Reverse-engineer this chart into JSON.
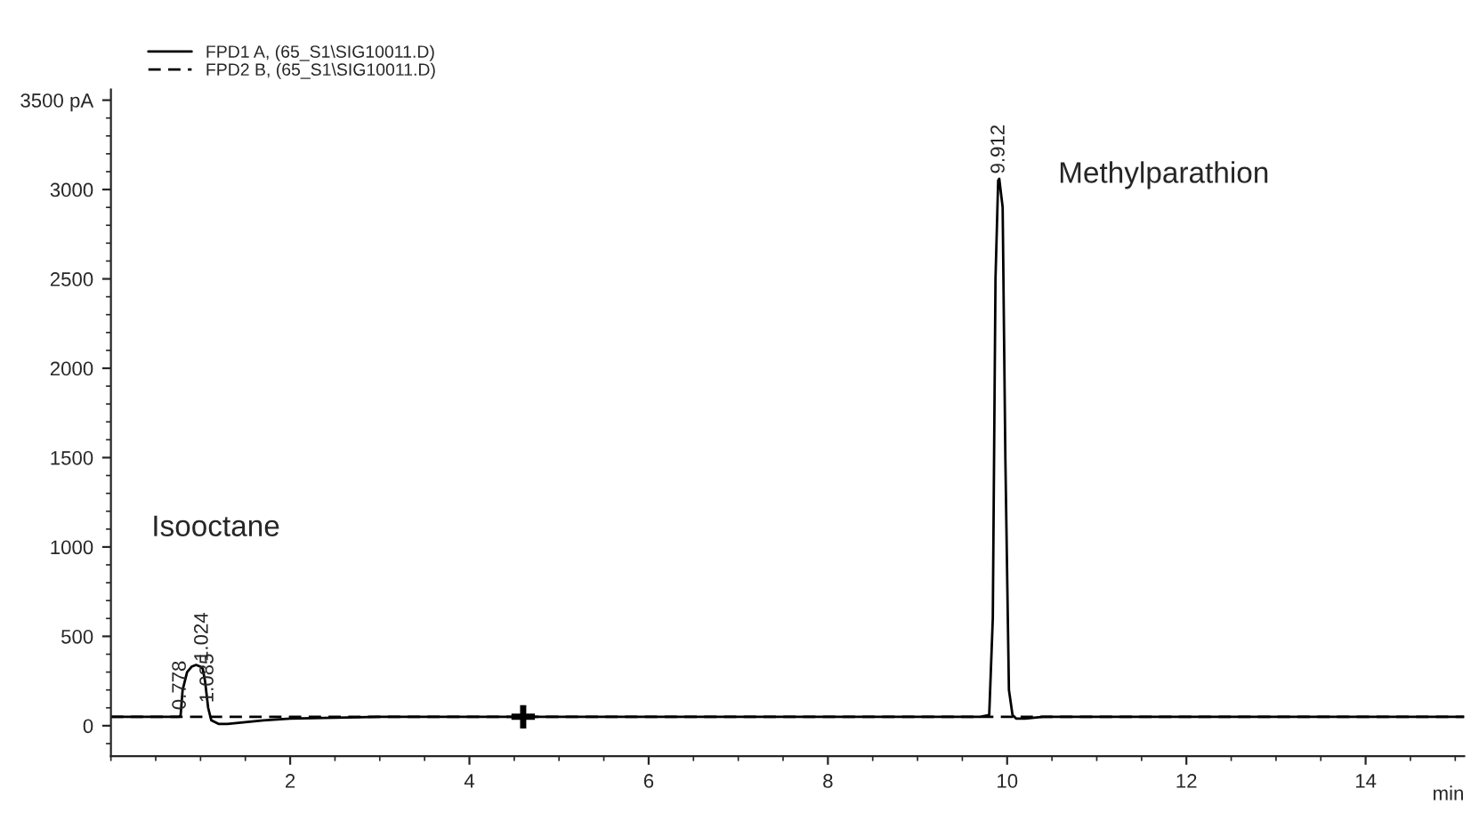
{
  "chart_data": {
    "type": "line",
    "xlabel": "min",
    "legend": "top left",
    "grid": false,
    "xlim": [
      0,
      15.1
    ],
    "ylim": [
      -170,
      3560
    ],
    "xticks": [
      2,
      4,
      6,
      8,
      10,
      12,
      14
    ],
    "yticks": [
      0,
      500,
      1000,
      1500,
      2000,
      2500,
      3000,
      {
        "value": 3500,
        "label": "3500 pA"
      }
    ],
    "series": [
      {
        "name": "FPD1 A, (65_S1\\SIG10011.D)",
        "color": "#000000",
        "line_style": "solid",
        "x": [
          0,
          0.7,
          0.76,
          0.778,
          0.8,
          0.85,
          0.9,
          0.95,
          1.0,
          1.024,
          1.05,
          1.085,
          1.12,
          1.2,
          1.3,
          1.5,
          1.7,
          2.0,
          3,
          4.6,
          6,
          8,
          9.7,
          9.8,
          9.84,
          9.87,
          9.9,
          9.912,
          9.95,
          9.98,
          10.02,
          10.06,
          10.1,
          10.2,
          10.4,
          12,
          15.1
        ],
        "values": [
          50,
          50,
          50,
          60,
          200,
          300,
          330,
          340,
          330,
          320,
          250,
          100,
          30,
          10,
          10,
          20,
          30,
          40,
          50,
          50,
          50,
          50,
          50,
          60,
          600,
          2500,
          3050,
          3060,
          2900,
          1500,
          200,
          60,
          40,
          40,
          50,
          50,
          50
        ]
      },
      {
        "name": "FPD2 B, (65_S1\\SIG10011.D)",
        "color": "#000000",
        "line_style": "dashed",
        "x": [
          0,
          5,
          10,
          15.1
        ],
        "values": [
          50,
          50,
          50,
          50
        ]
      },
      {
        "type": "scatter",
        "marker": "cross",
        "color": "#000000",
        "x": [
          4.6
        ],
        "values": [
          50
        ]
      }
    ],
    "annotations": [
      "Isooctane",
      "Methylparathion",
      {
        "text": "0.778",
        "x": 0.778,
        "y": 60
      },
      {
        "text": "1.024",
        "x": 1.024,
        "y": 330
      },
      {
        "text": "1.085",
        "x": 1.085,
        "y": 100
      },
      {
        "text": "9.912",
        "x": 9.912,
        "y": 3060
      }
    ]
  }
}
